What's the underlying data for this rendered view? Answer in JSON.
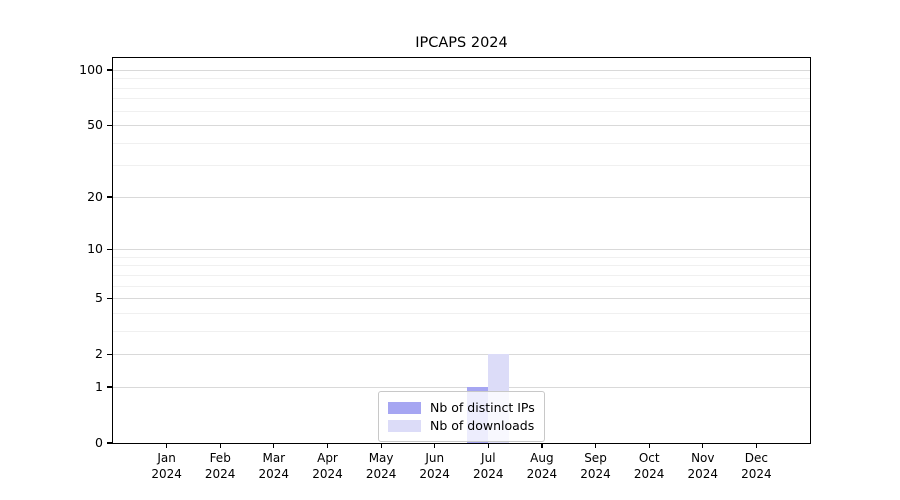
{
  "chart_data": {
    "type": "bar",
    "title": "IPCAPS 2024",
    "xlabel": "",
    "ylabel": "",
    "categories": [
      "Jan",
      "Feb",
      "Mar",
      "Apr",
      "May",
      "Jun",
      "Jul",
      "Aug",
      "Sep",
      "Oct",
      "Nov",
      "Dec"
    ],
    "category_year_label": "2024",
    "series": [
      {
        "name": "Nb of distinct IPs",
        "color": "#a6a6f2",
        "values": [
          0,
          0,
          0,
          0,
          0,
          0,
          1,
          0,
          0,
          0,
          0,
          0
        ]
      },
      {
        "name": "Nb of downloads",
        "color": "#dcdcf8",
        "values": [
          0,
          0,
          0,
          0,
          0,
          0,
          2,
          0,
          0,
          0,
          0,
          0
        ]
      }
    ],
    "y_axis": {
      "scale": "log1p",
      "ticks": [
        0,
        1,
        2,
        5,
        10,
        20,
        50,
        100
      ],
      "minor_gridlines": [
        3,
        4,
        6,
        7,
        8,
        9,
        30,
        40,
        60,
        70,
        80,
        90
      ],
      "ylim": [
        0,
        116
      ]
    },
    "grid": {
      "enabled": true,
      "major_color": "#d9d9d9",
      "minor_color": "#f0f0f0"
    },
    "legend": {
      "position": "lower-center",
      "background": "rgba(255,255,255,0.8)",
      "border_color": "#c8c8c8"
    },
    "axis_color": "#000000",
    "background_color": "#ffffff"
  }
}
